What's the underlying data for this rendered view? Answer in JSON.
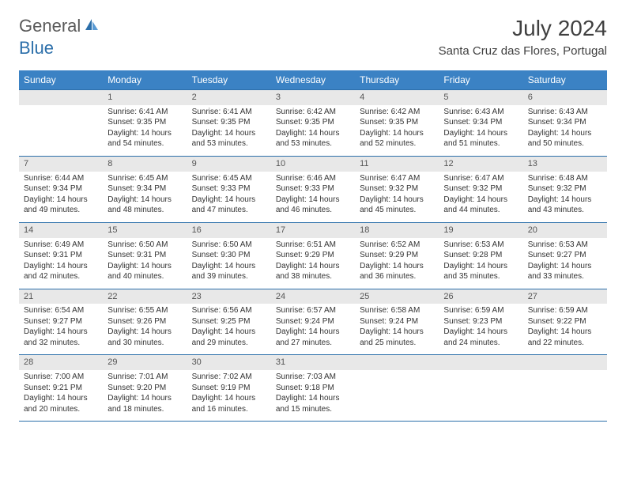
{
  "logo": {
    "text1": "General",
    "text2": "Blue"
  },
  "title": "July 2024",
  "location": "Santa Cruz das Flores, Portugal",
  "weekdays": [
    "Sunday",
    "Monday",
    "Tuesday",
    "Wednesday",
    "Thursday",
    "Friday",
    "Saturday"
  ],
  "colors": {
    "header_bg": "#3b82c4",
    "header_text": "#ffffff",
    "border": "#2c6faa",
    "daynum_bg": "#e8e8e8"
  },
  "weeks": [
    [
      {
        "day": "",
        "empty": true
      },
      {
        "day": "1",
        "sunrise": "Sunrise: 6:41 AM",
        "sunset": "Sunset: 9:35 PM",
        "daylight": "Daylight: 14 hours and 54 minutes."
      },
      {
        "day": "2",
        "sunrise": "Sunrise: 6:41 AM",
        "sunset": "Sunset: 9:35 PM",
        "daylight": "Daylight: 14 hours and 53 minutes."
      },
      {
        "day": "3",
        "sunrise": "Sunrise: 6:42 AM",
        "sunset": "Sunset: 9:35 PM",
        "daylight": "Daylight: 14 hours and 53 minutes."
      },
      {
        "day": "4",
        "sunrise": "Sunrise: 6:42 AM",
        "sunset": "Sunset: 9:35 PM",
        "daylight": "Daylight: 14 hours and 52 minutes."
      },
      {
        "day": "5",
        "sunrise": "Sunrise: 6:43 AM",
        "sunset": "Sunset: 9:34 PM",
        "daylight": "Daylight: 14 hours and 51 minutes."
      },
      {
        "day": "6",
        "sunrise": "Sunrise: 6:43 AM",
        "sunset": "Sunset: 9:34 PM",
        "daylight": "Daylight: 14 hours and 50 minutes."
      }
    ],
    [
      {
        "day": "7",
        "sunrise": "Sunrise: 6:44 AM",
        "sunset": "Sunset: 9:34 PM",
        "daylight": "Daylight: 14 hours and 49 minutes."
      },
      {
        "day": "8",
        "sunrise": "Sunrise: 6:45 AM",
        "sunset": "Sunset: 9:34 PM",
        "daylight": "Daylight: 14 hours and 48 minutes."
      },
      {
        "day": "9",
        "sunrise": "Sunrise: 6:45 AM",
        "sunset": "Sunset: 9:33 PM",
        "daylight": "Daylight: 14 hours and 47 minutes."
      },
      {
        "day": "10",
        "sunrise": "Sunrise: 6:46 AM",
        "sunset": "Sunset: 9:33 PM",
        "daylight": "Daylight: 14 hours and 46 minutes."
      },
      {
        "day": "11",
        "sunrise": "Sunrise: 6:47 AM",
        "sunset": "Sunset: 9:32 PM",
        "daylight": "Daylight: 14 hours and 45 minutes."
      },
      {
        "day": "12",
        "sunrise": "Sunrise: 6:47 AM",
        "sunset": "Sunset: 9:32 PM",
        "daylight": "Daylight: 14 hours and 44 minutes."
      },
      {
        "day": "13",
        "sunrise": "Sunrise: 6:48 AM",
        "sunset": "Sunset: 9:32 PM",
        "daylight": "Daylight: 14 hours and 43 minutes."
      }
    ],
    [
      {
        "day": "14",
        "sunrise": "Sunrise: 6:49 AM",
        "sunset": "Sunset: 9:31 PM",
        "daylight": "Daylight: 14 hours and 42 minutes."
      },
      {
        "day": "15",
        "sunrise": "Sunrise: 6:50 AM",
        "sunset": "Sunset: 9:31 PM",
        "daylight": "Daylight: 14 hours and 40 minutes."
      },
      {
        "day": "16",
        "sunrise": "Sunrise: 6:50 AM",
        "sunset": "Sunset: 9:30 PM",
        "daylight": "Daylight: 14 hours and 39 minutes."
      },
      {
        "day": "17",
        "sunrise": "Sunrise: 6:51 AM",
        "sunset": "Sunset: 9:29 PM",
        "daylight": "Daylight: 14 hours and 38 minutes."
      },
      {
        "day": "18",
        "sunrise": "Sunrise: 6:52 AM",
        "sunset": "Sunset: 9:29 PM",
        "daylight": "Daylight: 14 hours and 36 minutes."
      },
      {
        "day": "19",
        "sunrise": "Sunrise: 6:53 AM",
        "sunset": "Sunset: 9:28 PM",
        "daylight": "Daylight: 14 hours and 35 minutes."
      },
      {
        "day": "20",
        "sunrise": "Sunrise: 6:53 AM",
        "sunset": "Sunset: 9:27 PM",
        "daylight": "Daylight: 14 hours and 33 minutes."
      }
    ],
    [
      {
        "day": "21",
        "sunrise": "Sunrise: 6:54 AM",
        "sunset": "Sunset: 9:27 PM",
        "daylight": "Daylight: 14 hours and 32 minutes."
      },
      {
        "day": "22",
        "sunrise": "Sunrise: 6:55 AM",
        "sunset": "Sunset: 9:26 PM",
        "daylight": "Daylight: 14 hours and 30 minutes."
      },
      {
        "day": "23",
        "sunrise": "Sunrise: 6:56 AM",
        "sunset": "Sunset: 9:25 PM",
        "daylight": "Daylight: 14 hours and 29 minutes."
      },
      {
        "day": "24",
        "sunrise": "Sunrise: 6:57 AM",
        "sunset": "Sunset: 9:24 PM",
        "daylight": "Daylight: 14 hours and 27 minutes."
      },
      {
        "day": "25",
        "sunrise": "Sunrise: 6:58 AM",
        "sunset": "Sunset: 9:24 PM",
        "daylight": "Daylight: 14 hours and 25 minutes."
      },
      {
        "day": "26",
        "sunrise": "Sunrise: 6:59 AM",
        "sunset": "Sunset: 9:23 PM",
        "daylight": "Daylight: 14 hours and 24 minutes."
      },
      {
        "day": "27",
        "sunrise": "Sunrise: 6:59 AM",
        "sunset": "Sunset: 9:22 PM",
        "daylight": "Daylight: 14 hours and 22 minutes."
      }
    ],
    [
      {
        "day": "28",
        "sunrise": "Sunrise: 7:00 AM",
        "sunset": "Sunset: 9:21 PM",
        "daylight": "Daylight: 14 hours and 20 minutes."
      },
      {
        "day": "29",
        "sunrise": "Sunrise: 7:01 AM",
        "sunset": "Sunset: 9:20 PM",
        "daylight": "Daylight: 14 hours and 18 minutes."
      },
      {
        "day": "30",
        "sunrise": "Sunrise: 7:02 AM",
        "sunset": "Sunset: 9:19 PM",
        "daylight": "Daylight: 14 hours and 16 minutes."
      },
      {
        "day": "31",
        "sunrise": "Sunrise: 7:03 AM",
        "sunset": "Sunset: 9:18 PM",
        "daylight": "Daylight: 14 hours and 15 minutes."
      },
      {
        "day": "",
        "empty": true
      },
      {
        "day": "",
        "empty": true
      },
      {
        "day": "",
        "empty": true
      }
    ]
  ]
}
